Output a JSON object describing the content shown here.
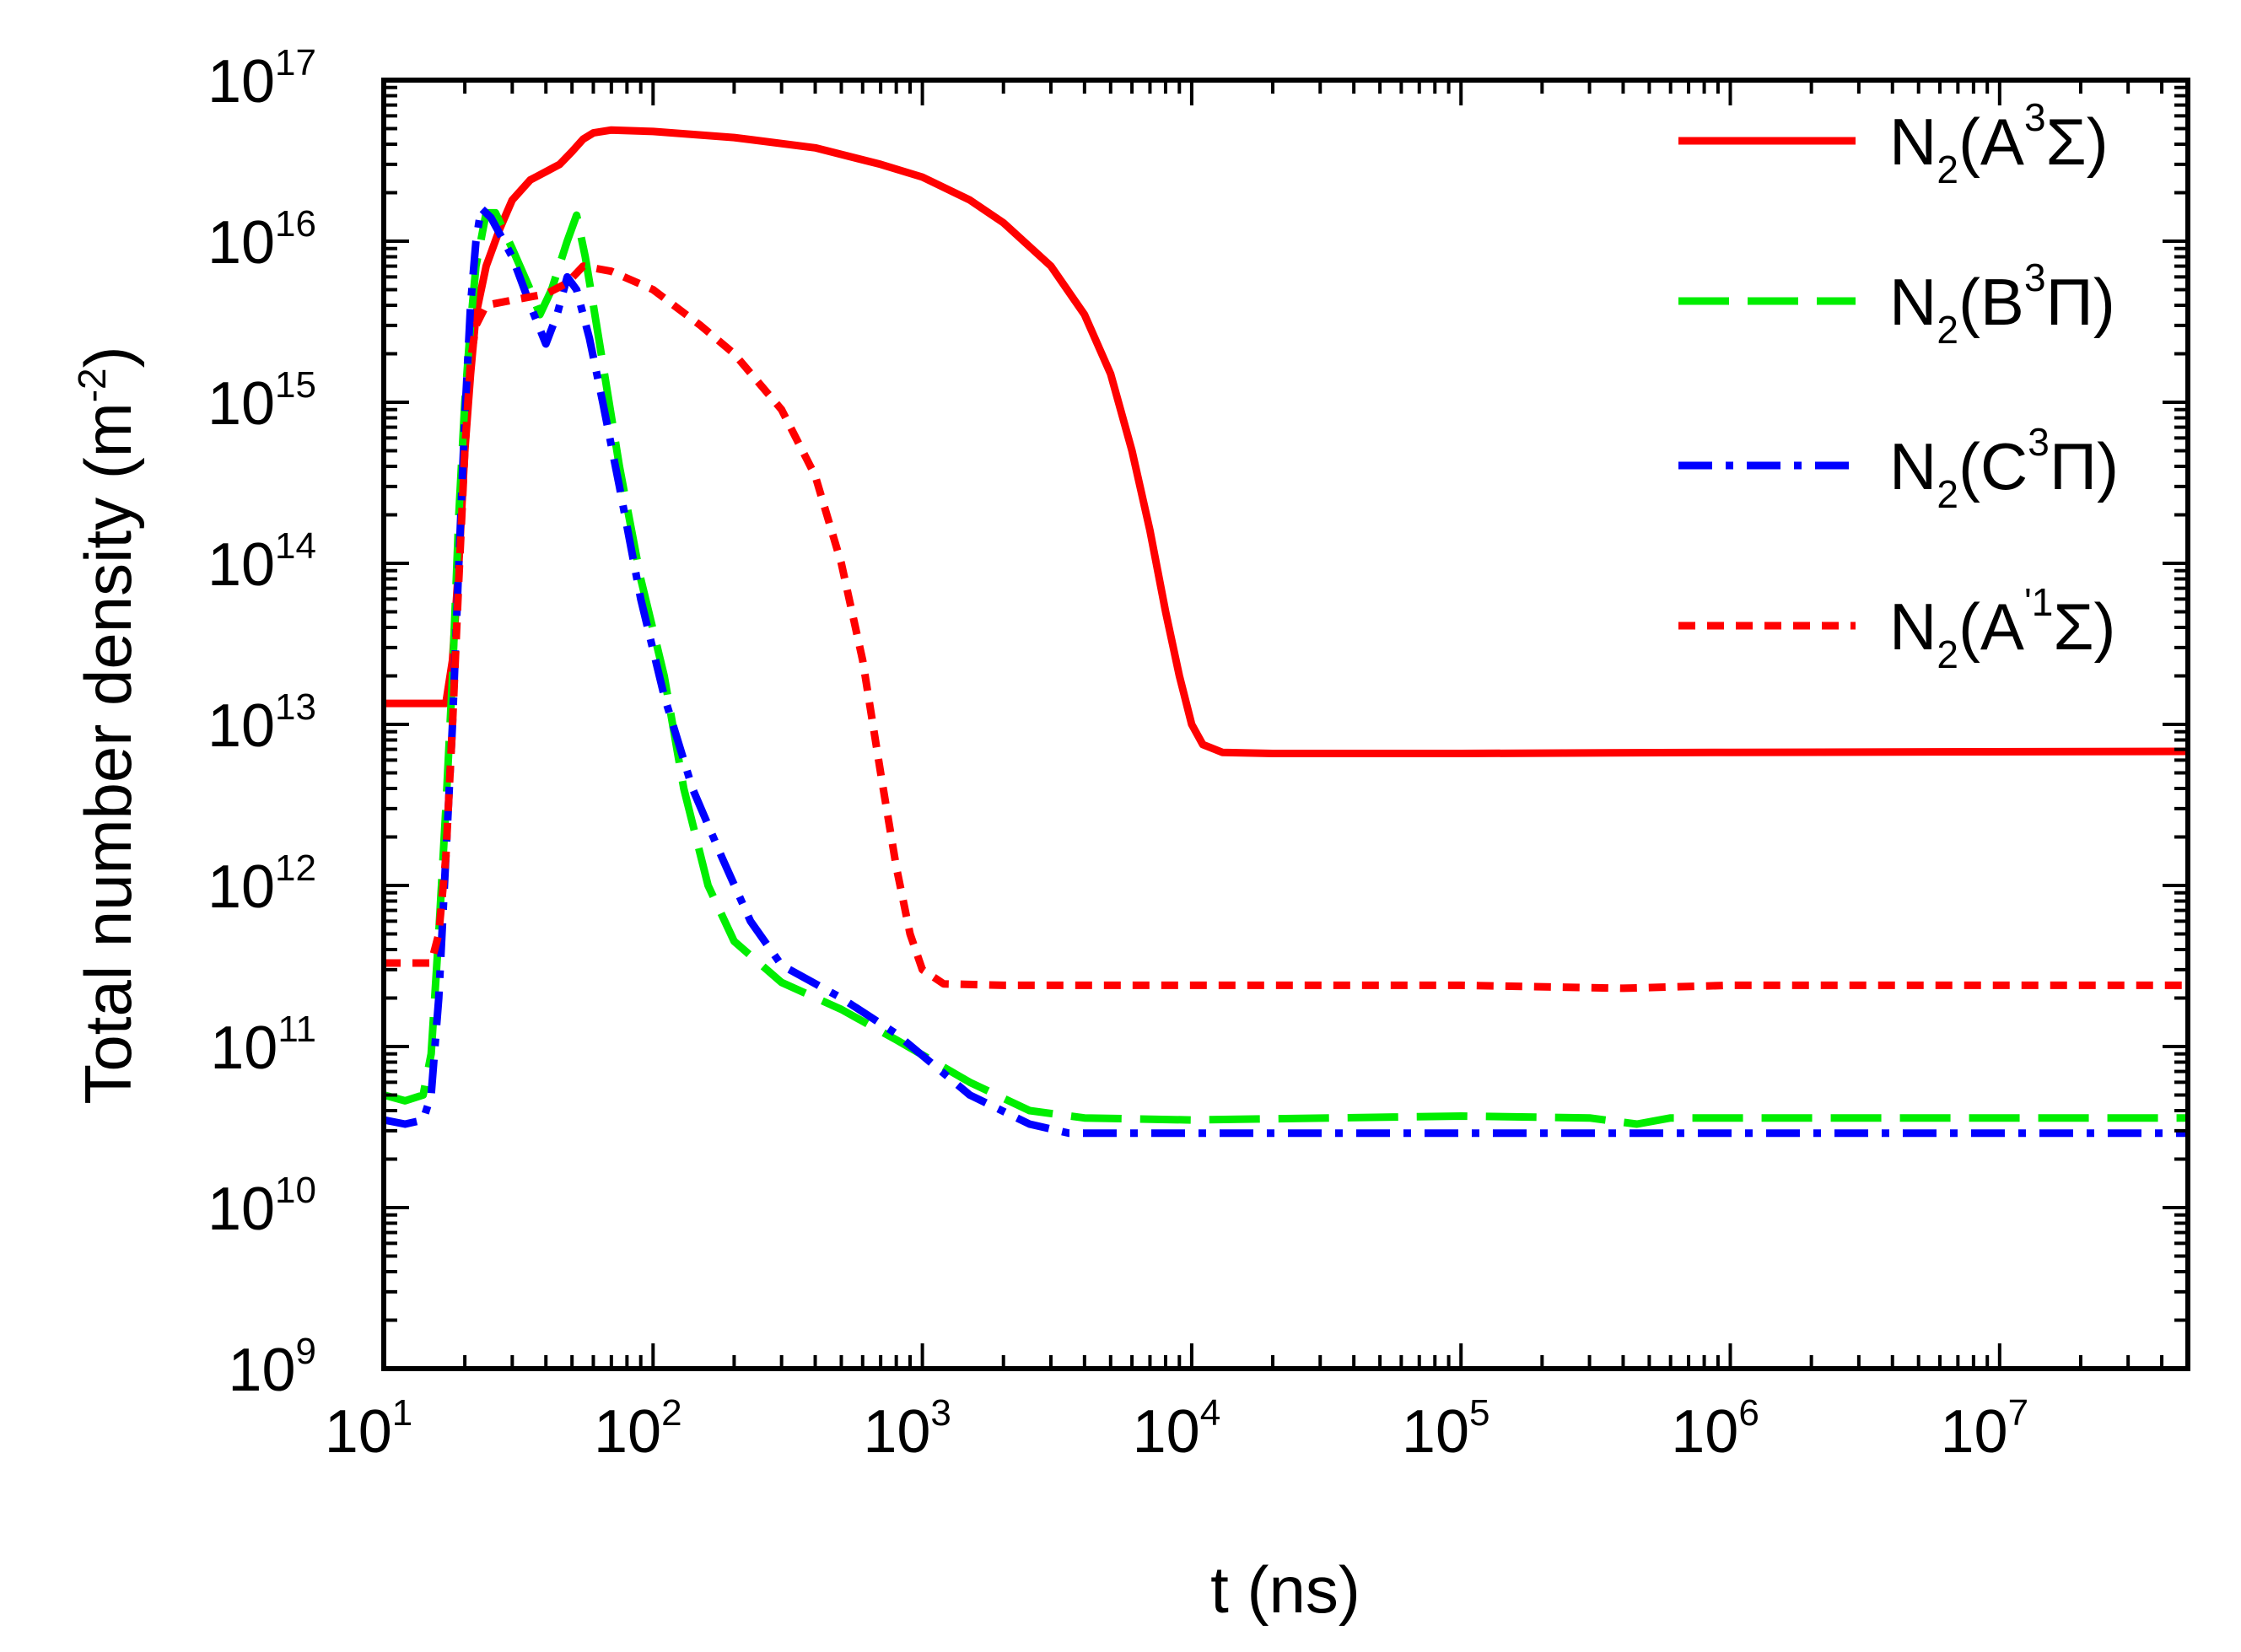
{
  "chart_data": {
    "type": "line",
    "title": "",
    "xlabel": "t (ns)",
    "ylabel_main": "Total number density ",
    "ylabel_unit_open": "(m",
    "ylabel_unit_exp": "-2",
    "ylabel_unit_close": ")",
    "x_scale": "log",
    "y_scale": "log",
    "xlim": [
      10,
      50000000
    ],
    "ylim": [
      1000000000.0,
      1e+17
    ],
    "grid": false,
    "legend_position": "top-right",
    "x_ticks": [
      {
        "base": "10",
        "exp": "1"
      },
      {
        "base": "10",
        "exp": "2"
      },
      {
        "base": "10",
        "exp": "3"
      },
      {
        "base": "10",
        "exp": "4"
      },
      {
        "base": "10",
        "exp": "5"
      },
      {
        "base": "10",
        "exp": "6"
      },
      {
        "base": "10",
        "exp": "7"
      }
    ],
    "y_ticks": [
      {
        "base": "10",
        "exp": "9"
      },
      {
        "base": "10",
        "exp": "10"
      },
      {
        "base": "10",
        "exp": "11"
      },
      {
        "base": "10",
        "exp": "12"
      },
      {
        "base": "10",
        "exp": "13"
      },
      {
        "base": "10",
        "exp": "14"
      },
      {
        "base": "10",
        "exp": "15"
      },
      {
        "base": "10",
        "exp": "16"
      },
      {
        "base": "10",
        "exp": "17"
      }
    ],
    "series": [
      {
        "name": "N2(A3Σ)",
        "label_main": "N",
        "label_sub": "2",
        "label_open": "(A",
        "label_sup": "3",
        "label_rest": "Σ)",
        "color": "#ff0000",
        "style": "solid",
        "points": [
          [
            10,
            13500000000000.0
          ],
          [
            17,
            13500000000000.0
          ],
          [
            18,
            25000000000000.0
          ],
          [
            19,
            100000000000000.0
          ],
          [
            20,
            500000000000000.0
          ],
          [
            21,
            1500000000000000.0
          ],
          [
            22,
            3500000000000000.0
          ],
          [
            24,
            7000000000000000.0
          ],
          [
            27,
            1.2e+16
          ],
          [
            30,
            1.8e+16
          ],
          [
            35,
            2.4e+16
          ],
          [
            40,
            2.7e+16
          ],
          [
            45,
            3e+16
          ],
          [
            50,
            3.6e+16
          ],
          [
            55,
            4.3e+16
          ],
          [
            60,
            4.7e+16
          ],
          [
            70,
            4.9e+16
          ],
          [
            100,
            4.8e+16
          ],
          [
            200,
            4.4e+16
          ],
          [
            400,
            3.8e+16
          ],
          [
            700,
            3e+16
          ],
          [
            1000,
            2.5e+16
          ],
          [
            1500,
            1.8e+16
          ],
          [
            2000,
            1.3e+16
          ],
          [
            3000,
            7000000000000000.0
          ],
          [
            4000,
            3500000000000000.0
          ],
          [
            5000,
            1500000000000000.0
          ],
          [
            6000,
            500000000000000.0
          ],
          [
            7000,
            160000000000000.0
          ],
          [
            8000,
            50000000000000.0
          ],
          [
            9000,
            20000000000000.0
          ],
          [
            10000,
            10000000000000.0
          ],
          [
            11000,
            7500000000000.0
          ],
          [
            13000,
            6700000000000.0
          ],
          [
            20000,
            6600000000000.0
          ],
          [
            100000,
            6600000000000.0
          ],
          [
            1000000,
            6700000000000.0
          ],
          [
            50000000,
            6800000000000.0
          ]
        ]
      },
      {
        "name": "N2(B3Π)",
        "label_main": "N",
        "label_sub": "2",
        "label_open": "(B",
        "label_sup": "3",
        "label_rest": "Π)",
        "color": "#00ee00",
        "style": "dashed",
        "points": [
          [
            10,
            50000000000.0
          ],
          [
            12,
            46000000000.0
          ],
          [
            14,
            50000000000.0
          ],
          [
            15,
            90000000000.0
          ],
          [
            16,
            500000000000.0
          ],
          [
            17,
            3000000000000.0
          ],
          [
            18,
            20000000000000.0
          ],
          [
            19,
            200000000000000.0
          ],
          [
            20,
            1000000000000000.0
          ],
          [
            21,
            3000000000000000.0
          ],
          [
            22,
            7000000000000000.0
          ],
          [
            24,
            1.5e+16
          ],
          [
            26,
            1.5e+16
          ],
          [
            30,
            9000000000000000.0
          ],
          [
            35,
            5000000000000000.0
          ],
          [
            38,
            3500000000000000.0
          ],
          [
            42,
            5000000000000000.0
          ],
          [
            48,
            1e+16
          ],
          [
            52,
            1.45e+16
          ],
          [
            56,
            8000000000000000.0
          ],
          [
            60,
            4000000000000000.0
          ],
          [
            66,
            1500000000000000.0
          ],
          [
            75,
            400000000000000.0
          ],
          [
            90,
            80000000000000.0
          ],
          [
            110,
            20000000000000.0
          ],
          [
            130,
            4000000000000.0
          ],
          [
            160,
            1000000000000.0
          ],
          [
            200,
            450000000000.0
          ],
          [
            300,
            250000000000.0
          ],
          [
            500,
            170000000000.0
          ],
          [
            800,
            110000000000.0
          ],
          [
            1500,
            60000000000.0
          ],
          [
            2500,
            40000000000.0
          ],
          [
            4000,
            36000000000.0
          ],
          [
            10000,
            35000000000.0
          ],
          [
            100000,
            37000000000.0
          ],
          [
            300000,
            36000000000.0
          ],
          [
            450000,
            33000000000.0
          ],
          [
            600000,
            36000000000.0
          ],
          [
            50000000,
            36000000000.0
          ]
        ]
      },
      {
        "name": "N2(C3Π)",
        "label_main": "N",
        "label_sub": "2",
        "label_open": "(C",
        "label_sup": "3",
        "label_rest": "Π)",
        "color": "#0000ff",
        "style": "dashdot",
        "points": [
          [
            10,
            35000000000.0
          ],
          [
            12,
            33000000000.0
          ],
          [
            14,
            35000000000.0
          ],
          [
            15,
            50000000000.0
          ],
          [
            16,
            200000000000.0
          ],
          [
            17,
            1500000000000.0
          ],
          [
            18,
            10000000000000.0
          ],
          [
            19,
            100000000000000.0
          ],
          [
            20,
            800000000000000.0
          ],
          [
            21,
            4000000000000000.0
          ],
          [
            22,
            1e+16
          ],
          [
            23,
            1.6e+16
          ],
          [
            25,
            1.4e+16
          ],
          [
            30,
            8000000000000000.0
          ],
          [
            35,
            4000000000000000.0
          ],
          [
            40,
            2300000000000000.0
          ],
          [
            44,
            3500000000000000.0
          ],
          [
            48,
            6000000000000000.0
          ],
          [
            52,
            5000000000000000.0
          ],
          [
            58,
            2500000000000000.0
          ],
          [
            65,
            1000000000000000.0
          ],
          [
            75,
            300000000000000.0
          ],
          [
            90,
            60000000000000.0
          ],
          [
            110,
            15000000000000.0
          ],
          [
            140,
            4000000000000.0
          ],
          [
            180,
            1500000000000.0
          ],
          [
            230,
            600000000000.0
          ],
          [
            300,
            320000000000.0
          ],
          [
            500,
            200000000000.0
          ],
          [
            800,
            120000000000.0
          ],
          [
            1500,
            50000000000.0
          ],
          [
            2500,
            33000000000.0
          ],
          [
            3500,
            29000000000.0
          ],
          [
            10000,
            29000000000.0
          ],
          [
            100000,
            29000000000.0
          ],
          [
            1000000,
            29000000000.0
          ],
          [
            50000000,
            29000000000.0
          ]
        ]
      },
      {
        "name": "N2(A'1Σ)",
        "label_main": "N",
        "label_sub": "2",
        "label_open": "(A",
        "label_sup": "'1",
        "label_rest": "Σ)",
        "color": "#ff0000",
        "style": "dotted",
        "points": [
          [
            10,
            330000000000.0
          ],
          [
            15,
            330000000000.0
          ],
          [
            16,
            500000000000.0
          ],
          [
            17,
            1500000000000.0
          ],
          [
            18,
            10000000000000.0
          ],
          [
            19,
            80000000000000.0
          ],
          [
            20,
            500000000000000.0
          ],
          [
            21,
            1800000000000000.0
          ],
          [
            22,
            3000000000000000.0
          ],
          [
            24,
            4000000000000000.0
          ],
          [
            30,
            4300000000000000.0
          ],
          [
            40,
            4700000000000000.0
          ],
          [
            48,
            5500000000000000.0
          ],
          [
            55,
            7000000000000000.0
          ],
          [
            70,
            6500000000000000.0
          ],
          [
            100,
            5000000000000000.0
          ],
          [
            150,
            3000000000000000.0
          ],
          [
            200,
            2000000000000000.0
          ],
          [
            300,
            900000000000000.0
          ],
          [
            400,
            350000000000000.0
          ],
          [
            500,
            100000000000000.0
          ],
          [
            600,
            25000000000000.0
          ],
          [
            700,
            5000000000000.0
          ],
          [
            800,
            1300000000000.0
          ],
          [
            900,
            500000000000.0
          ],
          [
            1000,
            300000000000.0
          ],
          [
            1200,
            245000000000.0
          ],
          [
            2000,
            240000000000.0
          ],
          [
            10000,
            240000000000.0
          ],
          [
            100000,
            240000000000.0
          ],
          [
            400000,
            230000000000.0
          ],
          [
            1000000,
            240000000000.0
          ],
          [
            50000000,
            240000000000.0
          ]
        ]
      }
    ]
  }
}
